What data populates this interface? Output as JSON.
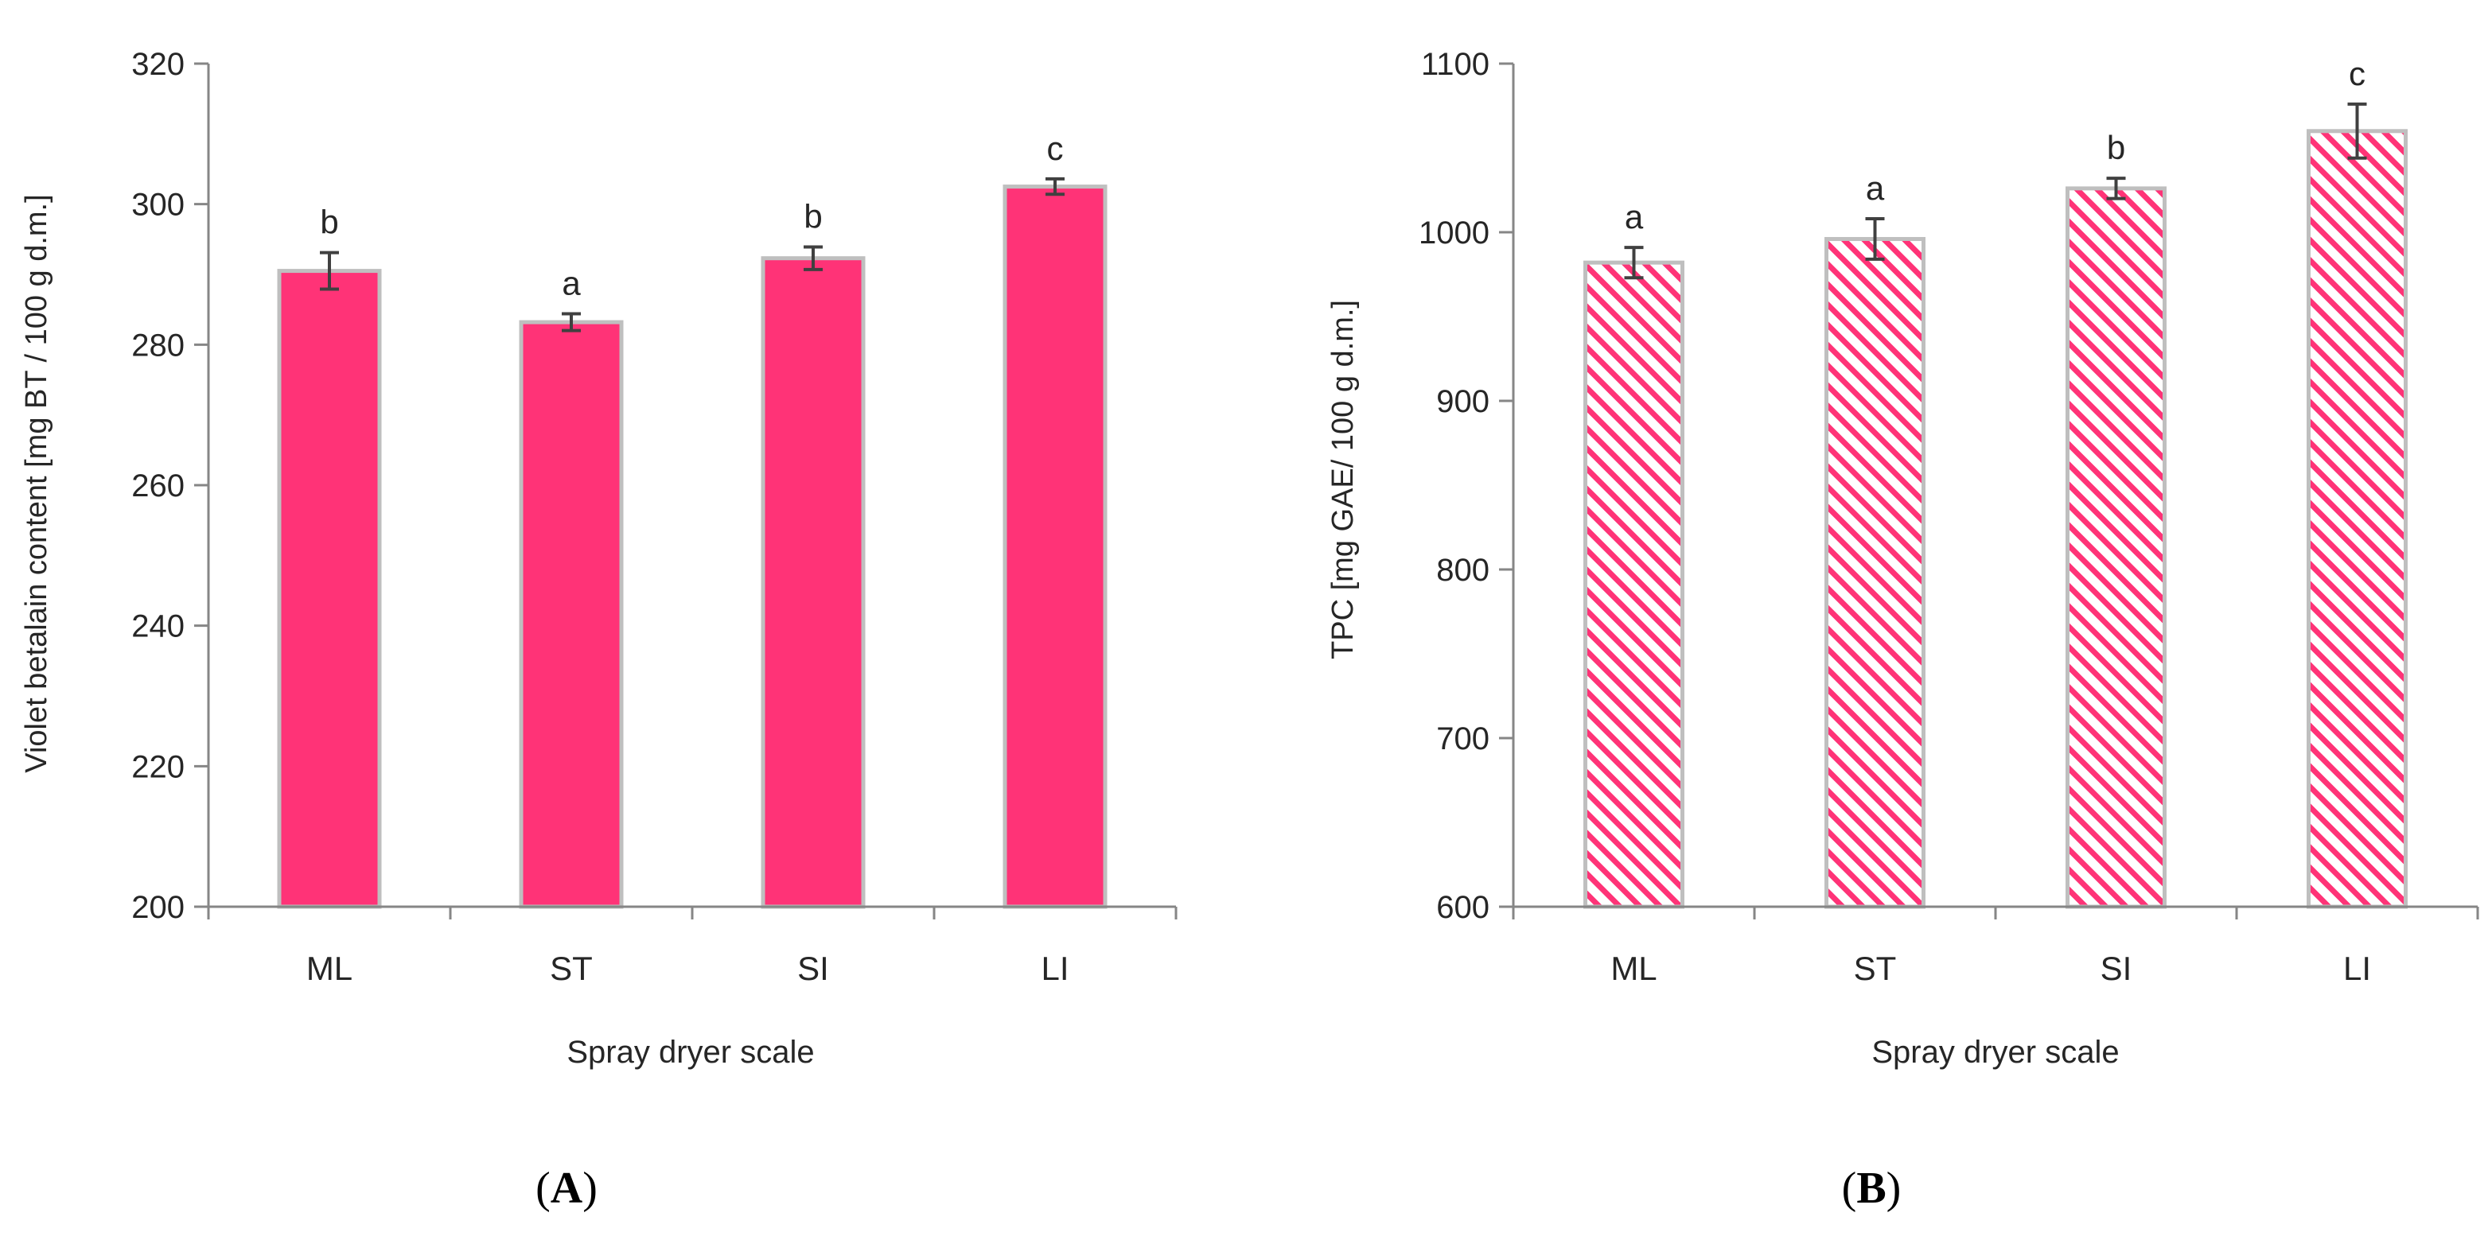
{
  "figure": {
    "panels": [
      {
        "label_open": "(",
        "label_letter": "A",
        "label_close": ")"
      },
      {
        "label_open": "(",
        "label_letter": "B",
        "label_close": ")"
      }
    ]
  },
  "chart_data": [
    {
      "type": "bar",
      "title": "",
      "categories": [
        "ML",
        "ST",
        "SI",
        "LI"
      ],
      "values": [
        290.5,
        283.2,
        292.3,
        302.5
      ],
      "errors": [
        2.6,
        1.2,
        1.6,
        1.1
      ],
      "significance_letters": [
        "b",
        "a",
        "b",
        "c"
      ],
      "xlabel": "Spray dryer scale",
      "ylabel": "Violet betalain content [mg BT / 100 g d.m.]",
      "ylim": [
        200,
        320
      ],
      "yticks": [
        200,
        220,
        240,
        260,
        280,
        300,
        320
      ],
      "grid": false,
      "legend": "none",
      "fill": "solid",
      "colors": {
        "bar": "#ff3377",
        "bar_edge": "#bfbfbf",
        "axis": "#868686",
        "error": "#404040"
      }
    },
    {
      "type": "bar",
      "title": "",
      "categories": [
        "ML",
        "ST",
        "SI",
        "LI"
      ],
      "values": [
        982,
        996,
        1026,
        1060
      ],
      "errors": [
        9,
        12,
        6,
        16
      ],
      "significance_letters": [
        "a",
        "a",
        "b",
        "c"
      ],
      "xlabel": "Spray dryer scale",
      "ylabel": "TPC [mg GAE/ 100 g d.m.]",
      "ylim": [
        600,
        1100
      ],
      "yticks": [
        600,
        700,
        800,
        900,
        1000,
        1100
      ],
      "grid": false,
      "legend": "none",
      "fill": "diagonal-stripes",
      "colors": {
        "bar": "#ff3377",
        "bar_edge": "#bfbfbf",
        "axis": "#868686",
        "error": "#404040"
      }
    }
  ]
}
